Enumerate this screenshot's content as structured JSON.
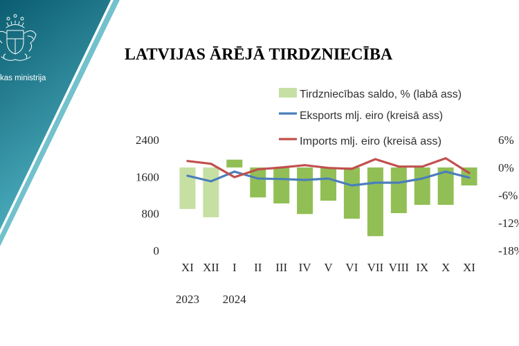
{
  "slide": {
    "logo_text": "kas ministrija",
    "logo_icon": "coat-of-arms-icon",
    "title": "LATVIJAS ĀRĒJĀ TIRDZNIECĪBA"
  },
  "colors": {
    "banner_dark": "#0b5d70",
    "banner_light": "#4fb2c2",
    "banner_stripe": "#72c1cd",
    "balance_bar": "#c6e0a4",
    "balance_bar_2024": "#92bf55",
    "export_line": "#4a7ebb",
    "import_line": "#c0504d"
  },
  "chart_data": {
    "type": "bar",
    "categories": [
      "XI",
      "XII",
      "I",
      "II",
      "III",
      "IV",
      "V",
      "VI",
      "VII",
      "VIII",
      "IX",
      "X",
      "XI"
    ],
    "category_years": [
      {
        "label": "2023",
        "category_index": 0
      },
      {
        "label": "2024",
        "category_index": 2
      }
    ],
    "series": [
      {
        "name": "Tirdzniecības saldo, % (labā ass)",
        "type": "bar",
        "axis": "right",
        "values": [
          -9.0,
          -10.8,
          1.7,
          -6.5,
          -7.8,
          -10.1,
          -7.2,
          -11.1,
          -14.9,
          -9.9,
          -8.1,
          -8.1,
          -3.9
        ]
      },
      {
        "name": "Eksports mlj. eiro (kreisā ass)",
        "type": "line",
        "axis": "left",
        "values": [
          1620,
          1500,
          1710,
          1560,
          1550,
          1530,
          1560,
          1410,
          1470,
          1470,
          1560,
          1710,
          1580
        ]
      },
      {
        "name": "Imports mlj. eiro (kreisā ass)",
        "type": "line",
        "axis": "left",
        "values": [
          1940,
          1880,
          1590,
          1760,
          1800,
          1850,
          1790,
          1770,
          1980,
          1820,
          1820,
          2000,
          1680
        ]
      }
    ],
    "left_axis": {
      "range": [
        0,
        2400
      ],
      "tick_labels": [
        "2400",
        "1600",
        "800",
        "0"
      ]
    },
    "right_axis": {
      "range": [
        -18,
        6
      ],
      "tick_labels": [
        "6%",
        "0%",
        "-6%",
        "-12%",
        "-18%"
      ]
    },
    "grid": false,
    "legend": "top-right"
  }
}
